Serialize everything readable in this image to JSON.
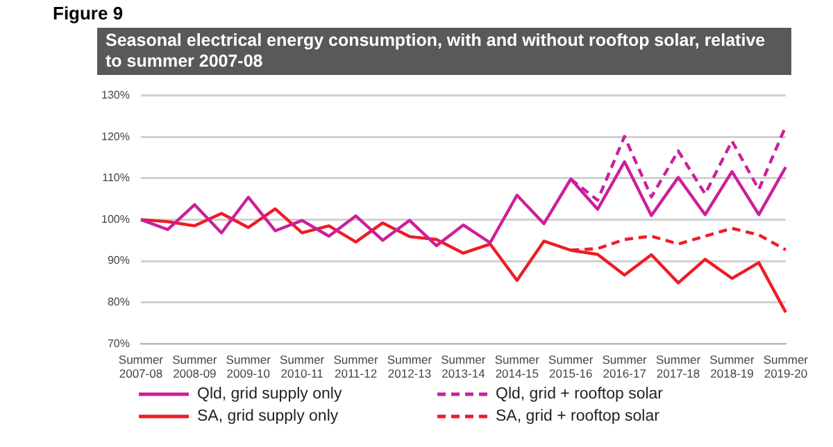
{
  "chart_data": {
    "type": "line",
    "title": "Seasonal electrical energy consumption, with and without rooftop solar, relative to summer 2007-08",
    "annotations": [
      "Figure 9"
    ],
    "categories": [
      "Summer 2007-08",
      null,
      "Summer 2008-09",
      null,
      "Summer 2009-10",
      null,
      "Summer 2010-11",
      null,
      "Summer 2011-12",
      null,
      "Summer 2012-13",
      null,
      "Summer 2013-14",
      null,
      "Summer 2014-15",
      null,
      "Summer 2015-16",
      null,
      "Summer 2016-17",
      null,
      "Summer 2017-18",
      null,
      "Summer 2018-19",
      null,
      "Summer 2019-20"
    ],
    "series": [
      {
        "name": "Qld, grid supply only",
        "color": "#cc1f9b",
        "line_style": "solid",
        "values": [
          100,
          97.6,
          103.6,
          96.8,
          105.4,
          97.3,
          99.8,
          96,
          100.9,
          95,
          99.8,
          93.7,
          98.7,
          94.4,
          105.9,
          99,
          109.8,
          102.5,
          114,
          101,
          110.2,
          101.2,
          111.6,
          101.2,
          112.7
        ]
      },
      {
        "name": "Qld, grid + rooftop solar",
        "color": "#cc1f9b",
        "line_style": "dashed",
        "values": [
          null,
          null,
          null,
          null,
          null,
          null,
          null,
          null,
          null,
          null,
          null,
          null,
          null,
          null,
          null,
          null,
          109.8,
          104.7,
          120.1,
          105.5,
          116.6,
          106.2,
          119,
          107.3,
          122.6
        ]
      },
      {
        "name": "SA, grid supply only",
        "color": "#ee1c25",
        "line_style": "solid",
        "values": [
          100,
          99.5,
          98.5,
          101.5,
          98.1,
          102.6,
          96.8,
          98.5,
          94.6,
          99.2,
          95.9,
          95.2,
          91.9,
          94.1,
          85.3,
          94.8,
          92.6,
          91.6,
          86.6,
          91.5,
          84.7,
          90.4,
          85.8,
          89.6,
          77.6
        ]
      },
      {
        "name": "SA, grid + rooftop solar",
        "color": "#ee1c25",
        "line_style": "dashed",
        "values": [
          null,
          null,
          null,
          null,
          null,
          null,
          null,
          null,
          null,
          null,
          null,
          null,
          null,
          null,
          null,
          null,
          92.6,
          93,
          95.2,
          96,
          94.1,
          96,
          97.9,
          96.3,
          92.7
        ]
      }
    ],
    "ylim": [
      70,
      130
    ],
    "yticks": [
      {
        "value": 70,
        "label": "70%"
      },
      {
        "value": 80,
        "label": "80%"
      },
      {
        "value": 90,
        "label": "90%"
      },
      {
        "value": 100,
        "label": "100%"
      },
      {
        "value": 110,
        "label": "110%"
      },
      {
        "value": 120,
        "label": "120%"
      },
      {
        "value": 130,
        "label": "130%"
      }
    ],
    "grid": "y",
    "legend": "bottom",
    "marker": "none"
  }
}
